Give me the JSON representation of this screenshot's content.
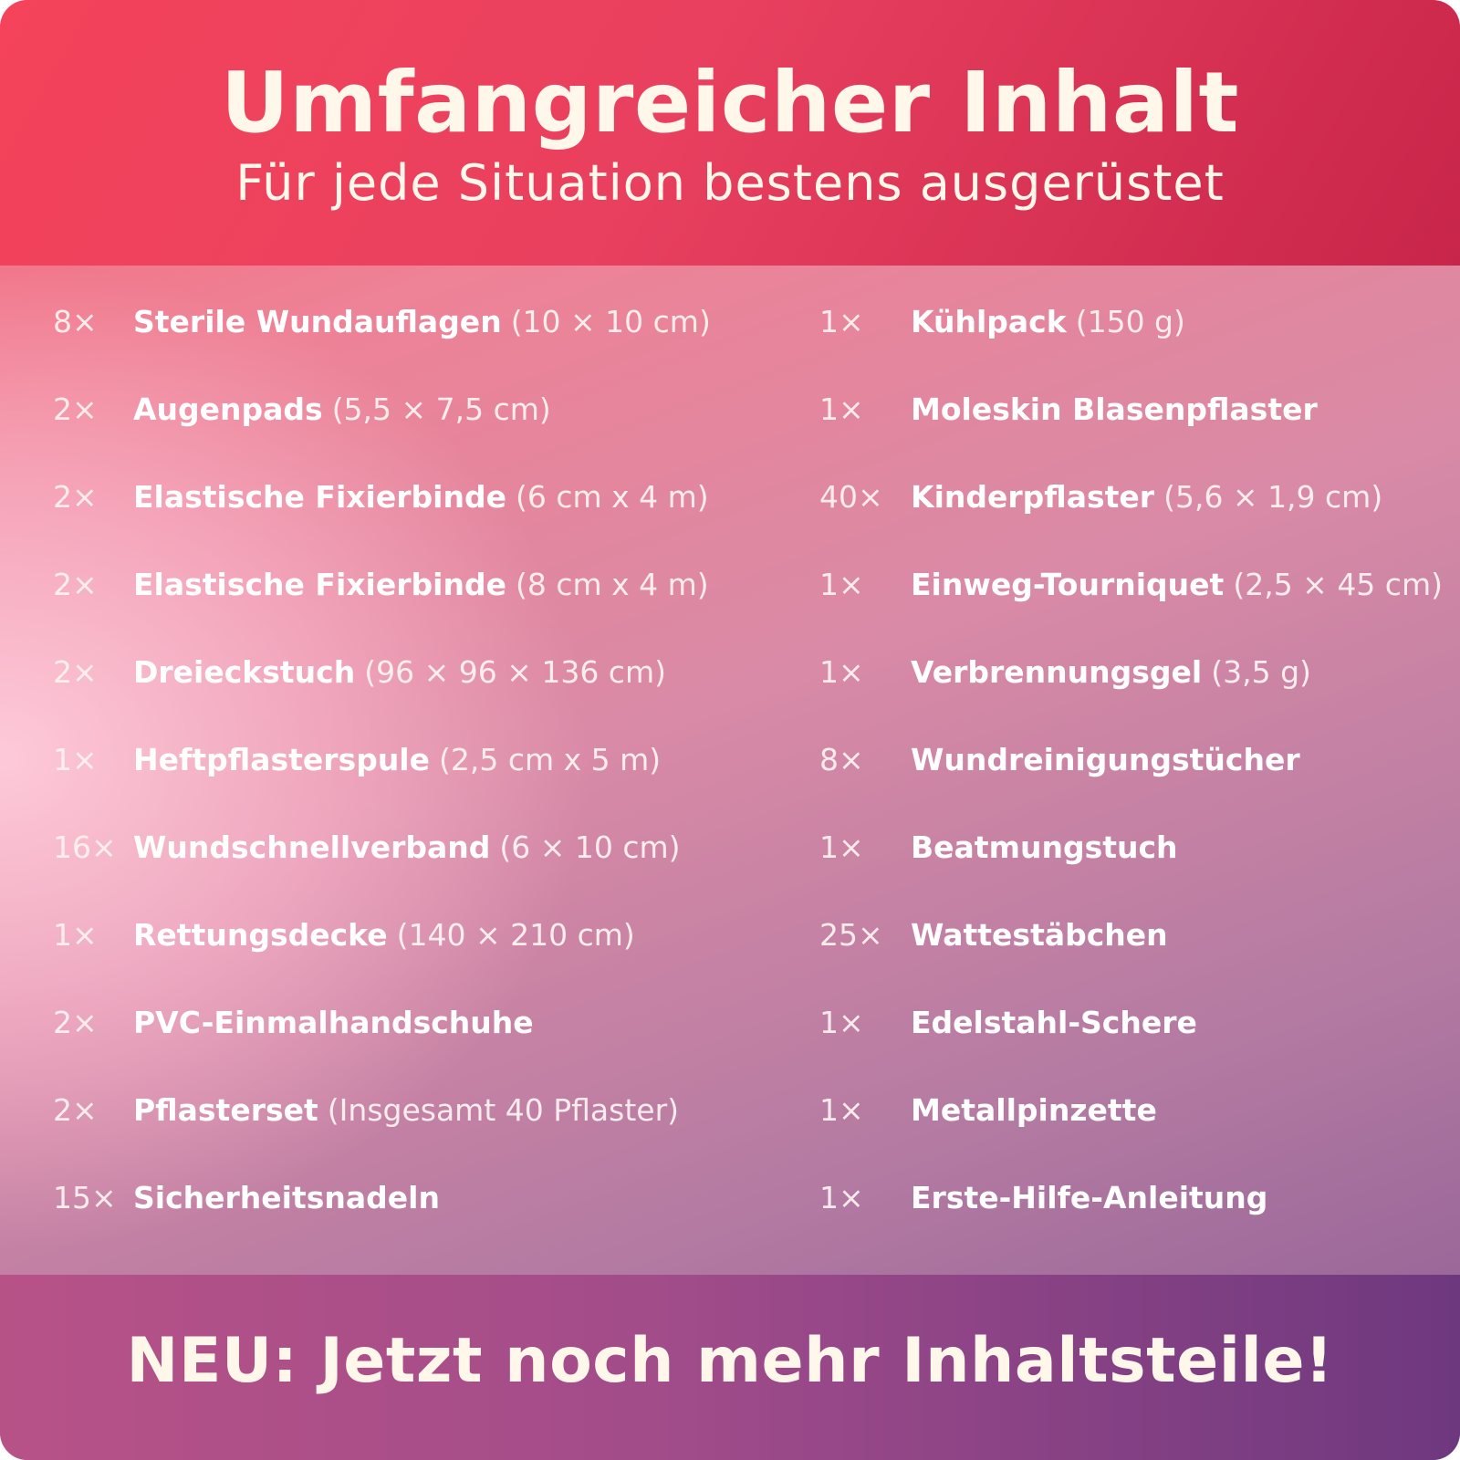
{
  "header": {
    "title": "Umfangreicher Inhalt",
    "subtitle": "Für jede Situation bestens ausgerüstet"
  },
  "left_items": [
    {
      "qty": "8×",
      "name": "Sterile Wundauflagen",
      "detail": "(10 × 10 cm)"
    },
    {
      "qty": "2×",
      "name": "Augenpads",
      "detail": "(5,5 × 7,5 cm)"
    },
    {
      "qty": "2×",
      "name": "Elastische Fixierbinde",
      "detail": "(6 cm x 4 m)"
    },
    {
      "qty": "2×",
      "name": "Elastische Fixierbinde",
      "detail": "(8 cm x 4 m)"
    },
    {
      "qty": "2×",
      "name": "Dreieckstuch",
      "detail": "(96 × 96 × 136 cm)"
    },
    {
      "qty": "1×",
      "name": "Heftpflasterspule",
      "detail": "(2,5 cm x 5 m)"
    },
    {
      "qty": "16×",
      "name": "Wundschnellverband",
      "detail": "(6 × 10 cm)"
    },
    {
      "qty": "1×",
      "name": "Rettungsdecke",
      "detail": "(140 × 210 cm)"
    },
    {
      "qty": "2×",
      "name": "PVC-Einmalhandschuhe",
      "detail": ""
    },
    {
      "qty": "2×",
      "name": "Pflasterset",
      "detail": "(Insgesamt 40 Pflaster)"
    },
    {
      "qty": "15×",
      "name": "Sicherheitsnadeln",
      "detail": ""
    }
  ],
  "right_items": [
    {
      "qty": "1×",
      "name": "Kühlpack",
      "detail": "(150 g)"
    },
    {
      "qty": "1×",
      "name": "Moleskin Blasenpflaster",
      "detail": ""
    },
    {
      "qty": "40×",
      "name": "Kinderpflaster",
      "detail": "(5,6 × 1,9 cm)"
    },
    {
      "qty": "1×",
      "name": "Einweg-Tourniquet",
      "detail": "(2,5 × 45 cm)"
    },
    {
      "qty": "1×",
      "name": "Verbrennungsgel",
      "detail": "(3,5 g)"
    },
    {
      "qty": "8×",
      "name": "Wundreinigungstücher",
      "detail": ""
    },
    {
      "qty": "1×",
      "name": "Beatmungstuch",
      "detail": ""
    },
    {
      "qty": "25×",
      "name": "Wattestäbchen",
      "detail": ""
    },
    {
      "qty": "1×",
      "name": "Edelstahl-Schere",
      "detail": ""
    },
    {
      "qty": "1×",
      "name": "Metallpinzette",
      "detail": ""
    },
    {
      "qty": "1×",
      "name": "Erste-Hilfe-Anleitung",
      "detail": ""
    }
  ],
  "footer": {
    "cta": "NEU: Jetzt noch mehr Inhaltsteile!"
  },
  "colors": {
    "header_bg": "#e9405f",
    "footer_bg": "#a24c8a",
    "text": "#fff8ea"
  }
}
